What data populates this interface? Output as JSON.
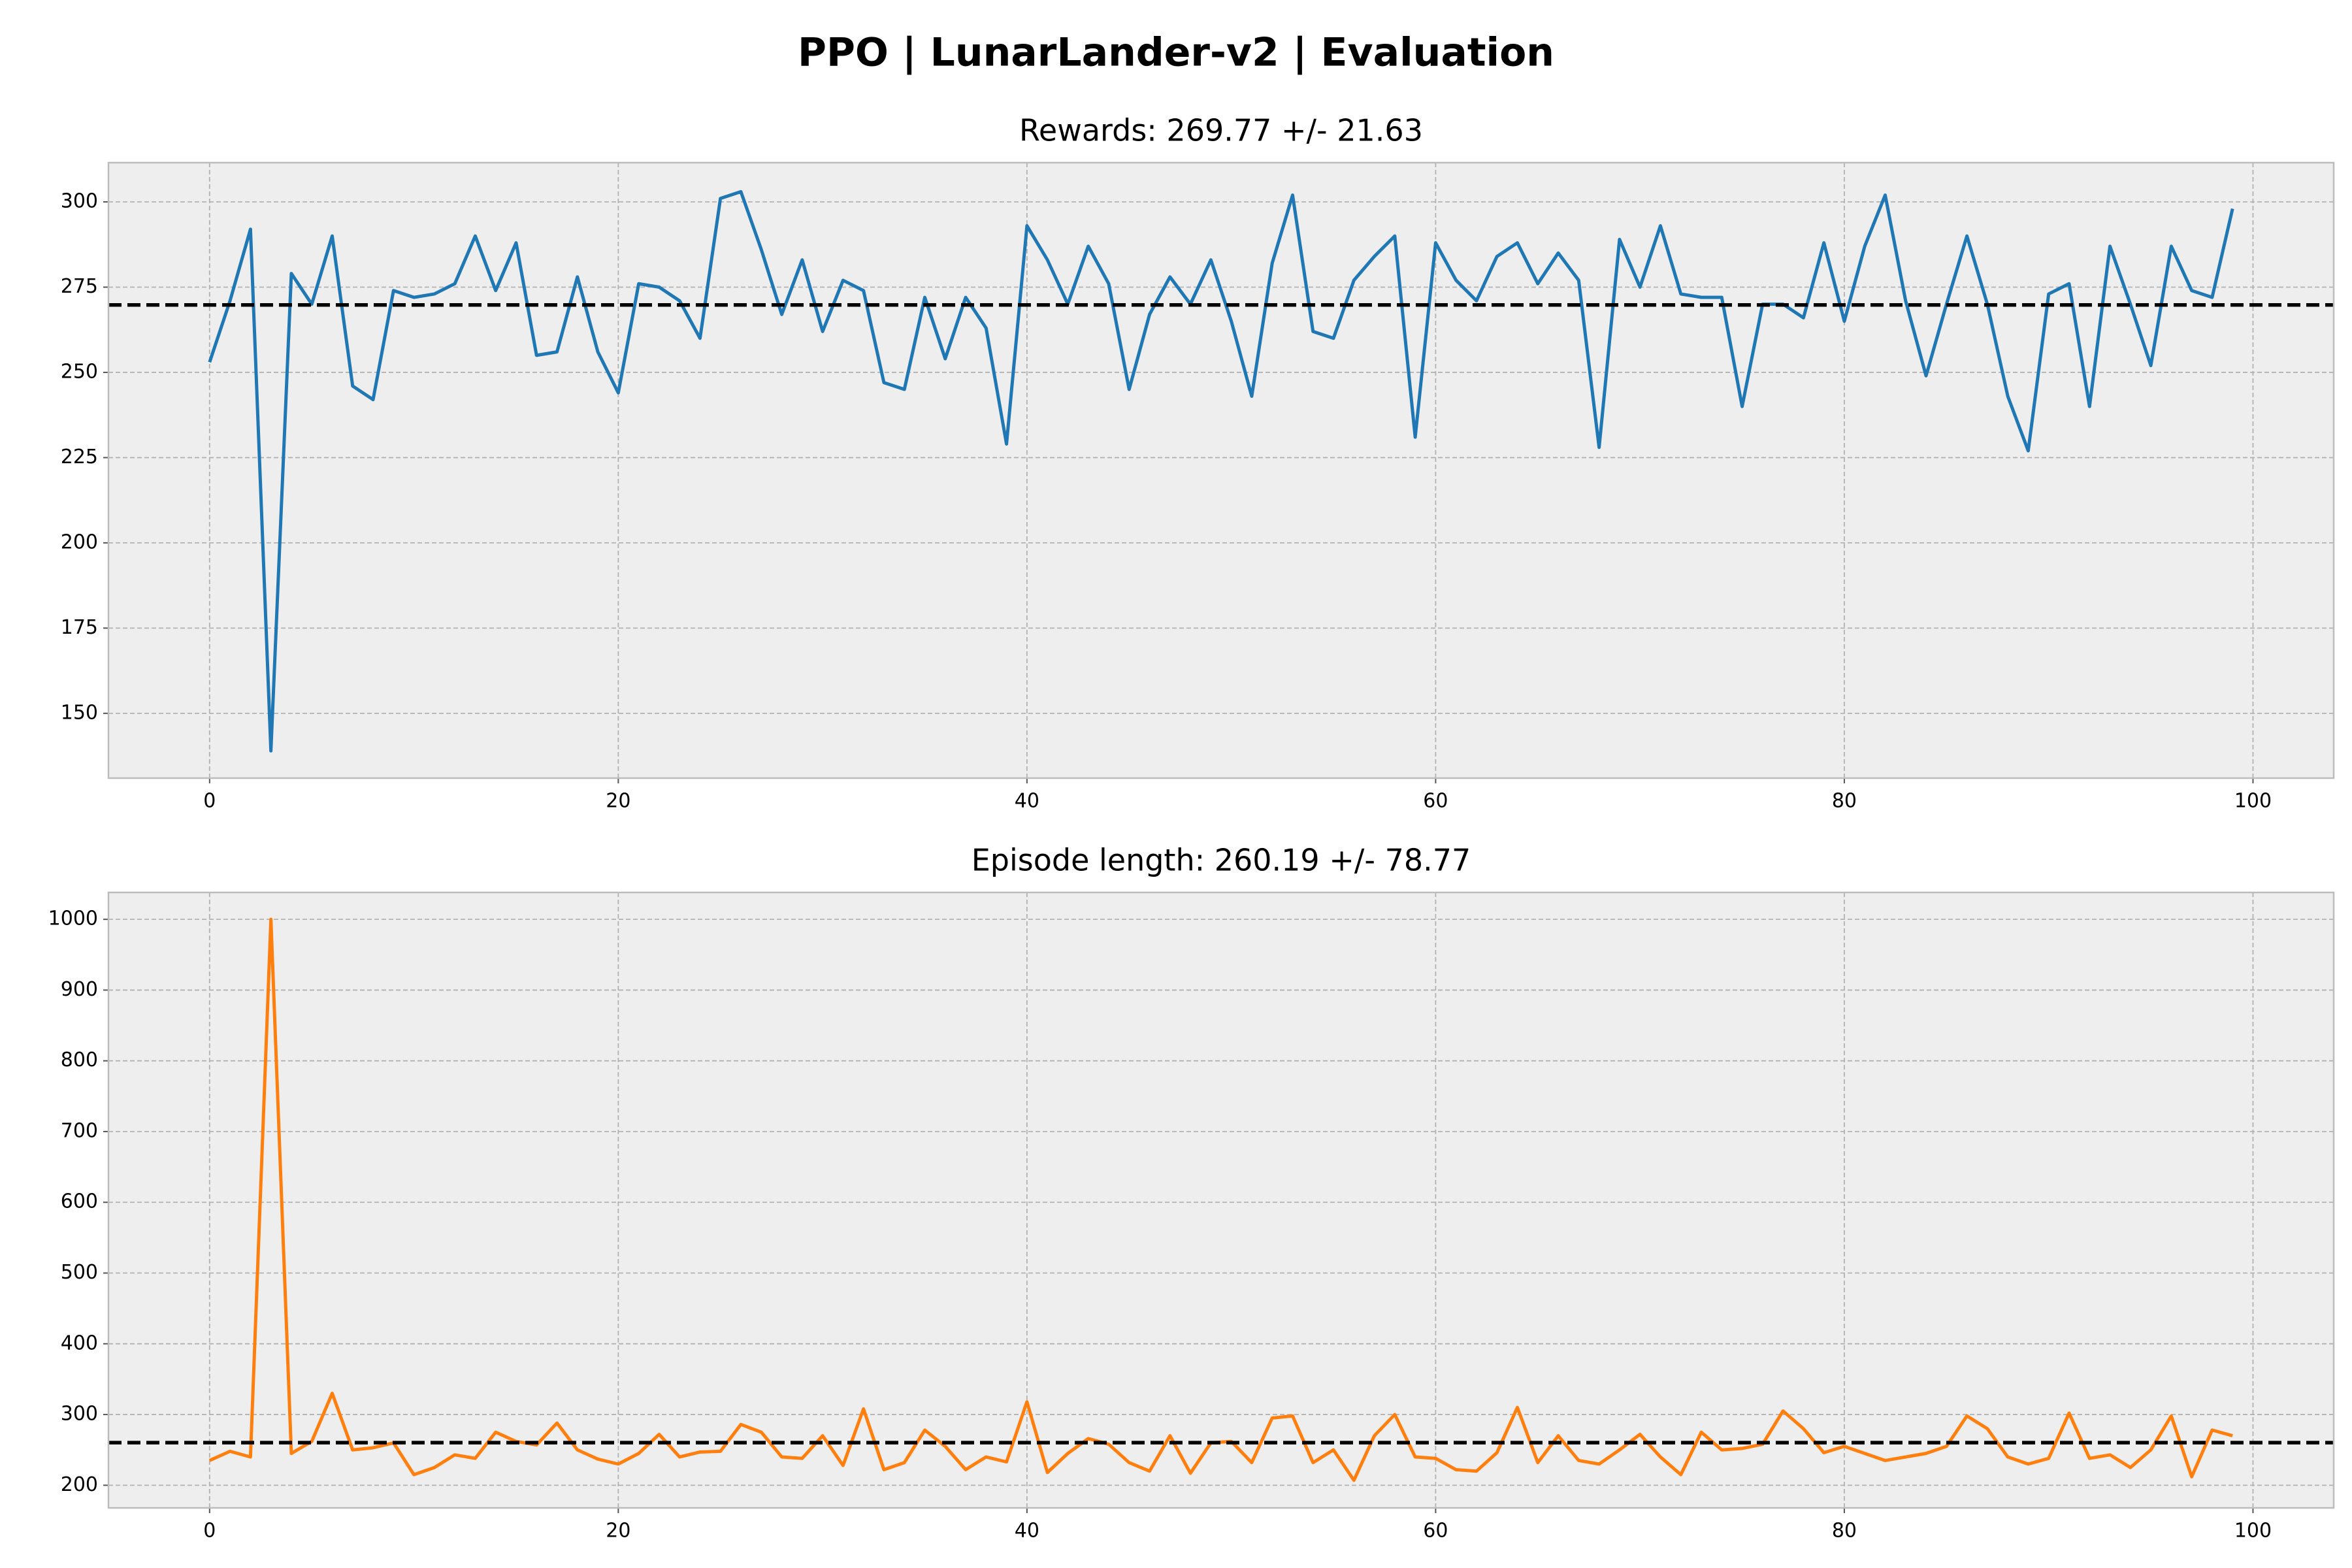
{
  "title": "PPO | LunarLander-v2 | Evaluation",
  "chart_data": [
    {
      "type": "line",
      "title": "Rewards: 269.77 +/- 21.63",
      "x": [
        0,
        1,
        2,
        3,
        4,
        5,
        6,
        7,
        8,
        9,
        10,
        11,
        12,
        13,
        14,
        15,
        16,
        17,
        18,
        19,
        20,
        21,
        22,
        23,
        24,
        25,
        26,
        27,
        28,
        29,
        30,
        31,
        32,
        33,
        34,
        35,
        36,
        37,
        38,
        39,
        40,
        41,
        42,
        43,
        44,
        45,
        46,
        47,
        48,
        49,
        50,
        51,
        52,
        53,
        54,
        55,
        56,
        57,
        58,
        59,
        60,
        61,
        62,
        63,
        64,
        65,
        66,
        67,
        68,
        69,
        70,
        71,
        72,
        73,
        74,
        75,
        76,
        77,
        78,
        79,
        80,
        81,
        82,
        83,
        84,
        85,
        86,
        87,
        88,
        89,
        90,
        91,
        92,
        93,
        94,
        95,
        96,
        97,
        98,
        99
      ],
      "series": [
        {
          "color": "#1f77b4",
          "values": [
            253,
            271,
            292,
            139,
            279,
            270,
            290,
            246,
            242,
            274,
            272,
            273,
            276,
            290,
            274,
            288,
            255,
            256,
            278,
            256,
            244,
            276,
            275,
            271,
            260,
            301,
            303,
            286,
            267,
            283,
            262,
            277,
            274,
            247,
            245,
            272,
            254,
            272,
            263,
            229,
            293,
            283,
            270,
            287,
            276,
            245,
            267,
            278,
            270,
            283,
            265,
            243,
            282,
            302,
            262,
            260,
            277,
            284,
            290,
            231,
            288,
            277,
            271,
            284,
            288,
            276,
            285,
            277,
            228,
            289,
            275,
            293,
            273,
            272,
            272,
            240,
            270,
            270,
            266,
            288,
            265,
            287,
            302,
            271,
            249,
            270,
            290,
            270,
            243,
            227,
            273,
            276,
            240,
            287,
            270,
            252,
            287,
            274,
            272,
            298
          ]
        }
      ],
      "mean": 269.77,
      "xlim": [
        -4.95,
        103.95
      ],
      "xticks": [
        0,
        20,
        40,
        60,
        80,
        100
      ],
      "ylim": [
        131,
        311.5
      ],
      "yticks": [
        150,
        175,
        200,
        225,
        250,
        275,
        300
      ],
      "grid": true
    },
    {
      "type": "line",
      "title": "Episode length: 260.19 +/- 78.77",
      "x": [
        0,
        1,
        2,
        3,
        4,
        5,
        6,
        7,
        8,
        9,
        10,
        11,
        12,
        13,
        14,
        15,
        16,
        17,
        18,
        19,
        20,
        21,
        22,
        23,
        24,
        25,
        26,
        27,
        28,
        29,
        30,
        31,
        32,
        33,
        34,
        35,
        36,
        37,
        38,
        39,
        40,
        41,
        42,
        43,
        44,
        45,
        46,
        47,
        48,
        49,
        50,
        51,
        52,
        53,
        54,
        55,
        56,
        57,
        58,
        59,
        60,
        61,
        62,
        63,
        64,
        65,
        66,
        67,
        68,
        69,
        70,
        71,
        72,
        73,
        74,
        75,
        76,
        77,
        78,
        79,
        80,
        81,
        82,
        83,
        84,
        85,
        86,
        87,
        88,
        89,
        90,
        91,
        92,
        93,
        94,
        95,
        96,
        97,
        98,
        99
      ],
      "series": [
        {
          "color": "#ff7f0e",
          "values": [
            235,
            248,
            240,
            1000,
            245,
            262,
            330,
            250,
            253,
            260,
            215,
            225,
            243,
            238,
            275,
            262,
            257,
            288,
            250,
            237,
            230,
            245,
            272,
            240,
            247,
            248,
            286,
            275,
            240,
            238,
            270,
            228,
            308,
            222,
            232,
            278,
            255,
            222,
            240,
            233,
            318,
            218,
            245,
            266,
            258,
            232,
            220,
            270,
            217,
            260,
            262,
            232,
            295,
            298,
            232,
            250,
            207,
            270,
            300,
            240,
            238,
            222,
            220,
            246,
            310,
            232,
            270,
            235,
            230,
            250,
            272,
            240,
            215,
            275,
            250,
            252,
            258,
            305,
            280,
            246,
            255,
            245,
            235,
            240,
            245,
            255,
            298,
            280,
            240,
            230,
            238,
            302,
            238,
            243,
            225,
            250,
            298,
            212,
            278,
            270
          ]
        }
      ],
      "mean": 260.19,
      "xlim": [
        -4.95,
        103.95
      ],
      "xticks": [
        0,
        20,
        40,
        60,
        80,
        100
      ],
      "ylim": [
        168,
        1038
      ],
      "yticks": [
        200,
        300,
        400,
        500,
        600,
        700,
        800,
        900,
        1000
      ],
      "grid": true
    }
  ]
}
